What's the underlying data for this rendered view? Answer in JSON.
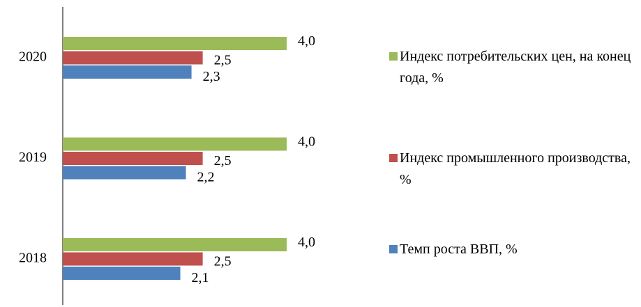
{
  "chart_data": {
    "type": "hbar",
    "categories": [
      "2018",
      "2019",
      "2020"
    ],
    "series": [
      {
        "name": "Темп роста ВВП, %",
        "color": "#4f81bd",
        "values": [
          2.1,
          2.2,
          2.3
        ],
        "value_labels": [
          "2,1",
          "2,2",
          "2,3"
        ]
      },
      {
        "name": "Индекс промышленного производства, %",
        "color": "#c0504d",
        "values": [
          2.5,
          2.5,
          2.5
        ],
        "value_labels": [
          "2,5",
          "2,5",
          "2,5"
        ]
      },
      {
        "name": "Индекс потребительских цен, на конец года, %",
        "color": "#9bbb59",
        "values": [
          4.0,
          4.0,
          4.0
        ],
        "value_labels": [
          "4,0",
          "4,0",
          "4,0"
        ]
      }
    ],
    "legend": "right"
  }
}
